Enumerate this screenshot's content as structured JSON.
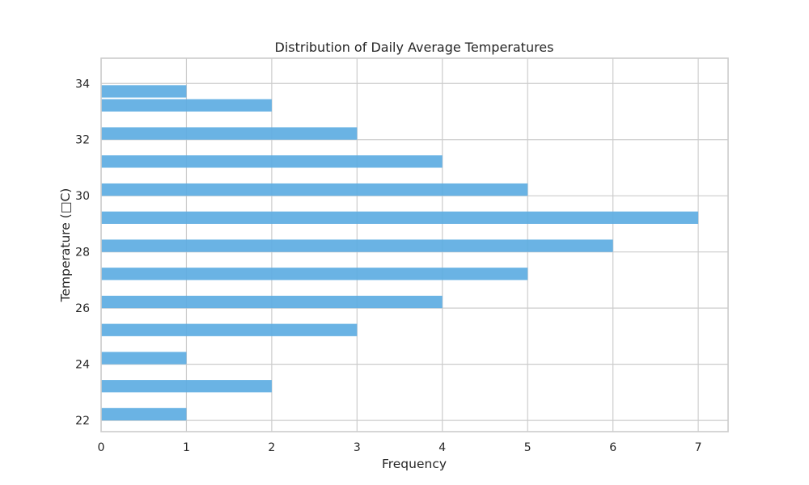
{
  "chart_data": {
    "type": "bar",
    "orientation": "horizontal",
    "title": "Distribution of Daily Average Temperatures",
    "xlabel": "Frequency",
    "ylabel": "Temperature (□C)",
    "bin_width": 0.44,
    "bins": [
      {
        "start": 22.0,
        "count": 1
      },
      {
        "start": 23.0,
        "count": 2
      },
      {
        "start": 24.0,
        "count": 1
      },
      {
        "start": 25.0,
        "count": 3
      },
      {
        "start": 26.0,
        "count": 4
      },
      {
        "start": 27.0,
        "count": 5
      },
      {
        "start": 28.0,
        "count": 6
      },
      {
        "start": 29.0,
        "count": 7
      },
      {
        "start": 30.0,
        "count": 5
      },
      {
        "start": 31.0,
        "count": 4
      },
      {
        "start": 32.0,
        "count": 3
      },
      {
        "start": 33.0,
        "count": 2
      },
      {
        "start": 33.5,
        "count": 1
      }
    ],
    "xlim": [
      0,
      7.35
    ],
    "ylim": [
      21.6,
      34.9
    ],
    "xticks": [
      0,
      1,
      2,
      3,
      4,
      5,
      6,
      7
    ],
    "yticks": [
      22,
      24,
      26,
      28,
      30,
      32,
      34
    ],
    "grid": true,
    "bar_color": "#5DADE2"
  }
}
